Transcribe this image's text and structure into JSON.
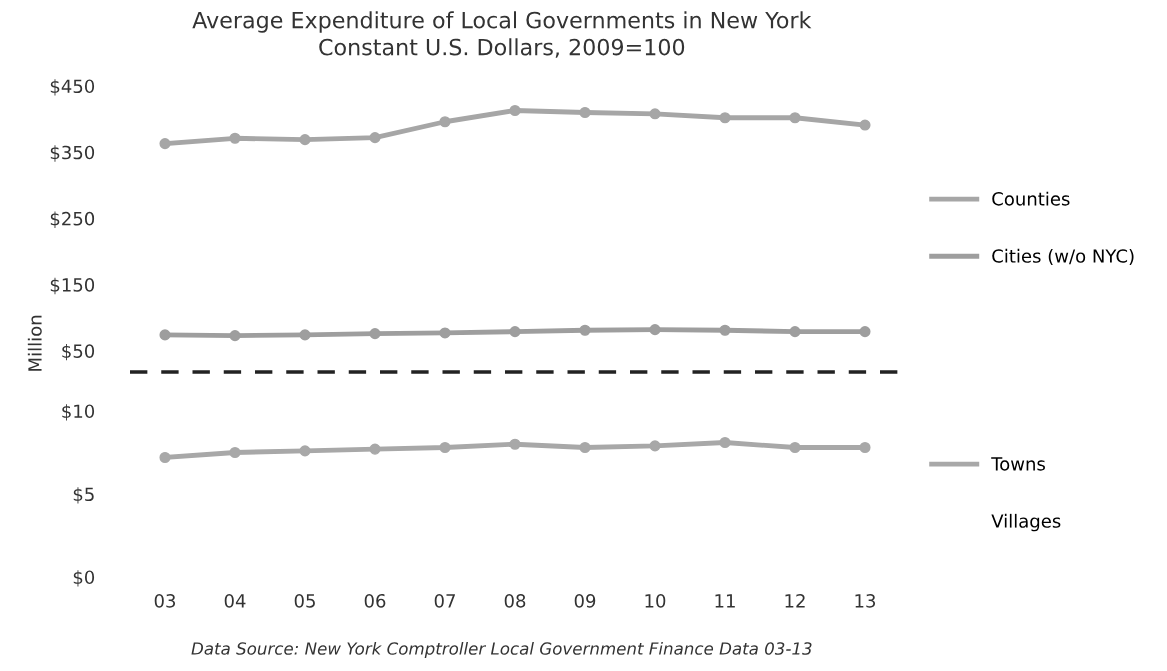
{
  "chart_data": [
    {
      "type": "line",
      "title": "Average Expenditure of Local Governments in New York",
      "subtitle": "Constant U.S. Dollars, 2009=100",
      "ylabel": "Million",
      "categories": [
        "03",
        "04",
        "05",
        "06",
        "07",
        "08",
        "09",
        "10",
        "11",
        "12",
        "13"
      ],
      "series": [
        {
          "name": "Counties",
          "color": "#a6a6a6",
          "values": [
            363,
            371,
            369,
            372,
            396,
            413,
            410,
            408,
            402,
            402,
            391
          ]
        },
        {
          "name": "Cities (w/o NYC)",
          "color": "#9e9e9e",
          "values": [
            74,
            73,
            74,
            76,
            77,
            79,
            81,
            82,
            81,
            79,
            79
          ]
        }
      ],
      "ylim": [
        18,
        450
      ],
      "yticks": [
        {
          "value": 50,
          "label": "$50"
        },
        {
          "value": 150,
          "label": "$150"
        },
        {
          "value": 250,
          "label": "$250"
        },
        {
          "value": 350,
          "label": "$350"
        },
        {
          "value": 450,
          "label": "$450"
        }
      ],
      "ref_lines": [
        {
          "axis": "y",
          "value": 18,
          "color": "#222222",
          "line_style": "dashed"
        }
      ],
      "tick_labels": "y",
      "marker": "circle",
      "legend": "right",
      "grid": false
    },
    {
      "type": "line",
      "categories": [
        "03",
        "04",
        "05",
        "06",
        "07",
        "08",
        "09",
        "10",
        "11",
        "12",
        "13"
      ],
      "series": [
        {
          "name": "Towns",
          "color": "#a8a8a8",
          "values": [
            7.2,
            7.5,
            7.6,
            7.7,
            7.8,
            8.0,
            7.8,
            7.9,
            8.1,
            7.8,
            7.8
          ]
        },
        {
          "name": "Villages",
          "values": [
            null,
            null,
            null,
            null,
            null,
            null,
            null,
            null,
            null,
            null,
            null
          ]
        }
      ],
      "ylim": [
        0,
        10
      ],
      "yticks": [
        {
          "value": 0,
          "label": "$0"
        },
        {
          "value": 5,
          "label": "$5"
        },
        {
          "value": 10,
          "label": "$10"
        }
      ],
      "annotations": [
        "Data Source: New York Comptroller Local Government Finance Data 03-13"
      ],
      "marker": "circle",
      "legend": "right",
      "grid": false
    }
  ]
}
